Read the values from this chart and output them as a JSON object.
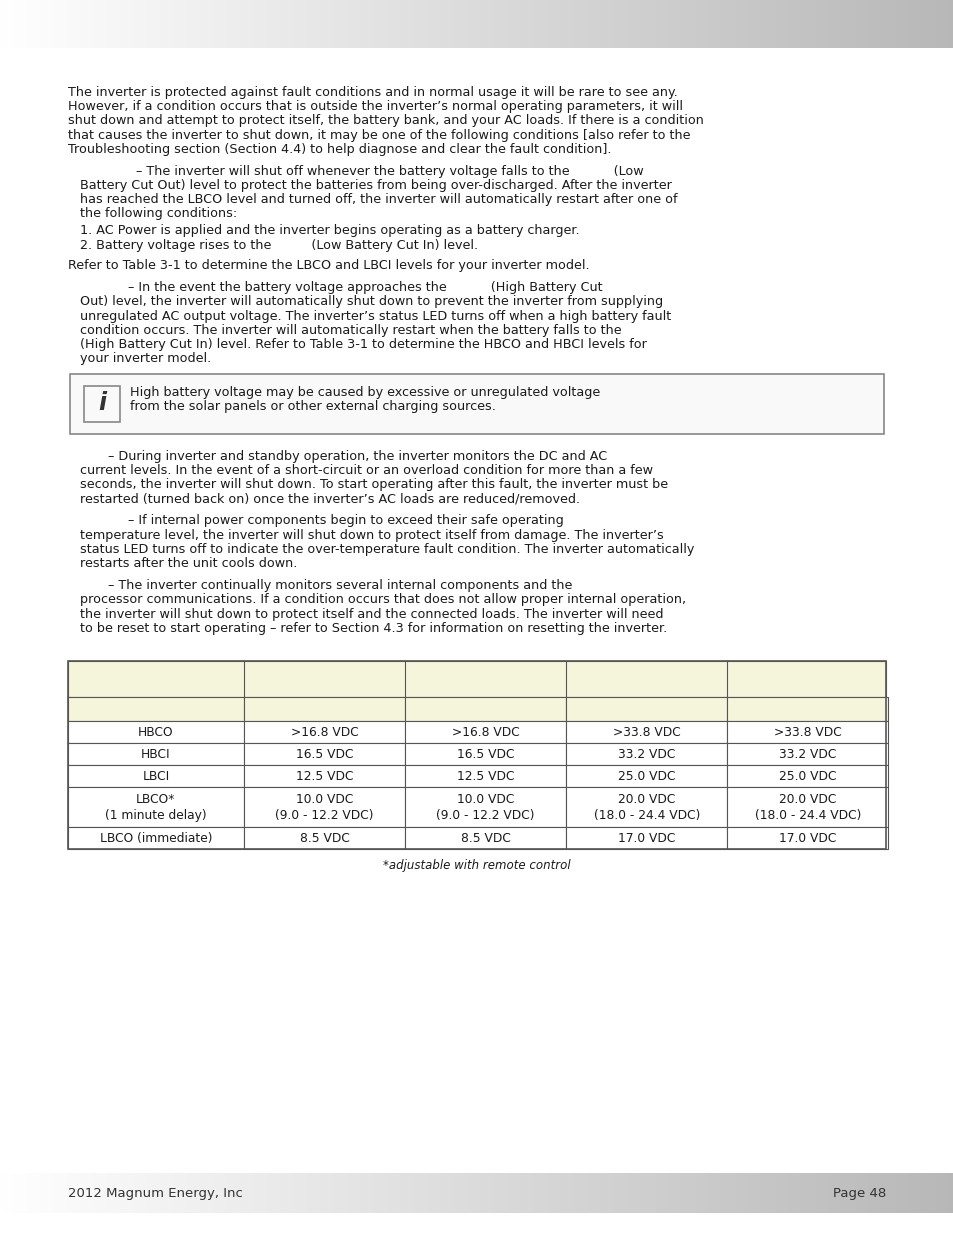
{
  "page_bg": "#ffffff",
  "table_header_bg": "#f5f5dc",
  "table_border_color": "#555555",
  "body_text_color": "#1a1a1a",
  "footer_text_color": "#333333",
  "p1_lines": [
    "The inverter is protected against fault conditions and in normal usage it will be rare to see any.",
    "However, if a condition occurs that is outside the inverter’s normal operating parameters, it will",
    "shut down and attempt to protect itself, the battery bank, and your AC loads. If there is a condition",
    "that causes the inverter to shut down, it may be one of the following conditions [also refer to the",
    "Troubleshooting section (Section 4.4) to help diagnose and clear the fault condition]."
  ],
  "p2_lines": [
    "                 – The inverter will shut off whenever the battery voltage falls to the           (Low",
    "   Battery Cut Out) level to protect the batteries from being over-discharged. After the inverter",
    "   has reached the LBCO level and turned off, the inverter will automatically restart after one of",
    "   the following conditions:"
  ],
  "list_lines": [
    "   1. AC Power is applied and the inverter begins operating as a battery charger.",
    "   2. Battery voltage rises to the          (Low Battery Cut In) level."
  ],
  "p3": "Refer to Table 3-1 to determine the LBCO and LBCI levels for your inverter model.",
  "p4_lines": [
    "               – In the event the battery voltage approaches the           (High Battery Cut",
    "   Out) level, the inverter will automatically shut down to prevent the inverter from supplying",
    "   unregulated AC output voltage. The inverter’s status LED turns off when a high battery fault",
    "   condition occurs. The inverter will automatically restart when the battery falls to the",
    "   (High Battery Cut In) level. Refer to Table 3-1 to determine the HBCO and HBCI levels for",
    "   your inverter model."
  ],
  "info_line1": "High battery voltage may be caused by excessive or unregulated voltage",
  "info_line2": "from the solar panels or other external charging sources.",
  "p5_lines": [
    "          – During inverter and standby operation, the inverter monitors the DC and AC",
    "   current levels. In the event of a short-circuit or an overload condition for more than a few",
    "   seconds, the inverter will shut down. To start operating after this fault, the inverter must be",
    "   restarted (turned back on) once the inverter’s AC loads are reduced/removed."
  ],
  "p6_lines": [
    "               – If internal power components begin to exceed their safe operating",
    "   temperature level, the inverter will shut down to protect itself from damage. The inverter’s",
    "   status LED turns off to indicate the over-temperature fault condition. The inverter automatically",
    "   restarts after the unit cools down."
  ],
  "p7_lines": [
    "          – The inverter continually monitors several internal components and the",
    "   processor communications. If a condition occurs that does not allow proper internal operation,",
    "   the inverter will shut down to protect itself and the connected loads. The inverter will need",
    "   to be reset to start operating – refer to Section 4.3 for information on resetting the inverter."
  ],
  "table_row_labels": [
    "HBCO",
    "HBCI",
    "LBCI",
    "LBCO*\n(1 minute delay)",
    "LBCO (immediate)"
  ],
  "table_data": [
    [
      ">16.8 VDC",
      ">16.8 VDC",
      ">33.8 VDC",
      ">33.8 VDC"
    ],
    [
      "16.5 VDC",
      "16.5 VDC",
      "33.2 VDC",
      "33.2 VDC"
    ],
    [
      "12.5 VDC",
      "12.5 VDC",
      "25.0 VDC",
      "25.0 VDC"
    ],
    [
      "10.0 VDC\n(9.0 - 12.2 VDC)",
      "10.0 VDC\n(9.0 - 12.2 VDC)",
      "20.0 VDC\n(18.0 - 24.4 VDC)",
      "20.0 VDC\n(18.0 - 24.4 VDC)"
    ],
    [
      "8.5 VDC",
      "8.5 VDC",
      "17.0 VDC",
      "17.0 VDC"
    ]
  ],
  "table_footnote": "*adjustable with remote control",
  "footer_left": "2012 Magnum Energy, Inc",
  "footer_right": "Page 48",
  "font_size_body": 9.2,
  "font_size_table": 8.8,
  "font_size_footer": 9.5
}
